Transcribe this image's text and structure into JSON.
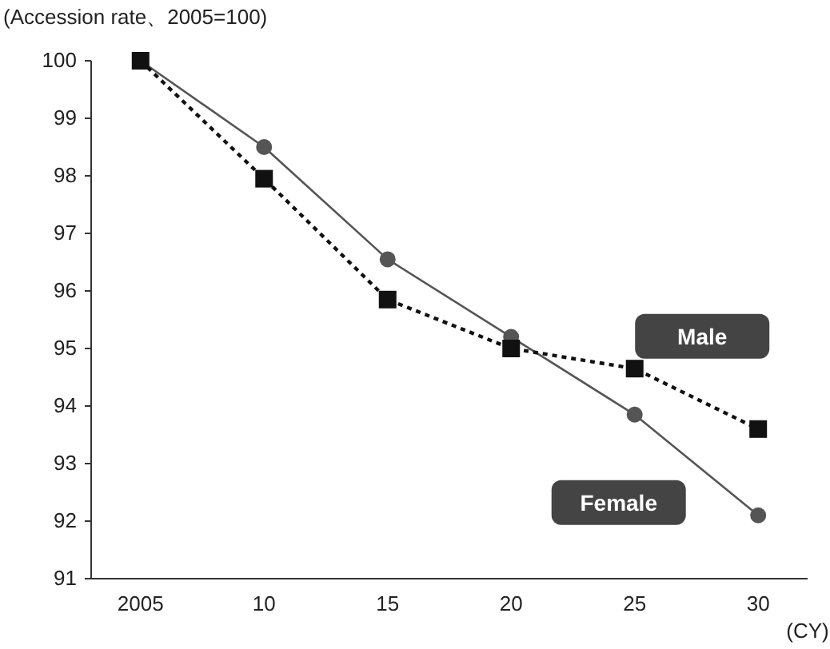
{
  "chart_data": {
    "type": "line",
    "ylabel": "(Accession rate、2005=100)",
    "xlabel": "(CY)",
    "categories": [
      "2005",
      "10",
      "15",
      "20",
      "25",
      "30"
    ],
    "ylim": [
      91,
      100
    ],
    "yticks": [
      91,
      92,
      93,
      94,
      95,
      96,
      97,
      98,
      99,
      100
    ],
    "grid": false,
    "series": [
      {
        "name": "Female",
        "color": "#555555",
        "marker": "circle",
        "line_style": "solid",
        "values": [
          100,
          98.5,
          96.55,
          95.2,
          93.85,
          92.1
        ]
      },
      {
        "name": "Male",
        "color": "#111111",
        "marker": "square",
        "line_style": "dotted",
        "values": [
          100,
          97.95,
          95.85,
          95.0,
          94.65,
          93.6
        ]
      }
    ]
  }
}
